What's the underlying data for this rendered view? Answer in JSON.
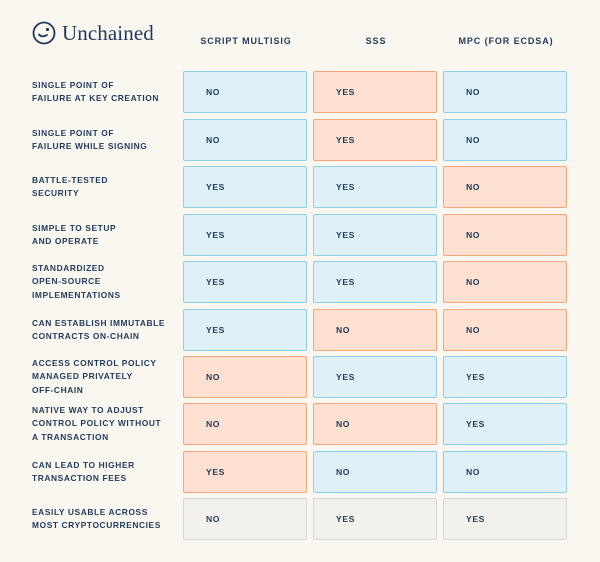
{
  "brand": {
    "name": "Unchained"
  },
  "columns": [
    "SCRIPT MULTISIG",
    "SSS",
    "MPC (FOR ECDSA)"
  ],
  "colors": {
    "blue": "#dff0f7",
    "orange": "#fde0cf",
    "grey": "#f3f1ec",
    "text": "#1f3a5c"
  },
  "rows": [
    {
      "label": "SINGLE POINT OF\nFAILURE AT KEY CREATION",
      "cells": [
        {
          "value": "NO",
          "tone": "blue"
        },
        {
          "value": "YES",
          "tone": "orange"
        },
        {
          "value": "NO",
          "tone": "blue"
        }
      ]
    },
    {
      "label": "SINGLE POINT OF\nFAILURE WHILE SIGNING",
      "cells": [
        {
          "value": "NO",
          "tone": "blue"
        },
        {
          "value": "YES",
          "tone": "orange"
        },
        {
          "value": "NO",
          "tone": "blue"
        }
      ]
    },
    {
      "label": "BATTLE-TESTED\nSECURITY",
      "cells": [
        {
          "value": "YES",
          "tone": "blue"
        },
        {
          "value": "YES",
          "tone": "blue"
        },
        {
          "value": "NO",
          "tone": "orange"
        }
      ]
    },
    {
      "label": "SIMPLE TO SETUP\nAND OPERATE",
      "cells": [
        {
          "value": "YES",
          "tone": "blue"
        },
        {
          "value": "YES",
          "tone": "blue"
        },
        {
          "value": "NO",
          "tone": "orange"
        }
      ]
    },
    {
      "label": "STANDARDIZED\nOPEN-SOURCE\nIMPLEMENTATIONS",
      "cells": [
        {
          "value": "YES",
          "tone": "blue"
        },
        {
          "value": "YES",
          "tone": "blue"
        },
        {
          "value": "NO",
          "tone": "orange"
        }
      ]
    },
    {
      "label": "CAN ESTABLISH IMMUTABLE\nCONTRACTS ON-CHAIN",
      "cells": [
        {
          "value": "YES",
          "tone": "blue"
        },
        {
          "value": "NO",
          "tone": "orange"
        },
        {
          "value": "NO",
          "tone": "orange"
        }
      ]
    },
    {
      "label": "ACCESS CONTROL POLICY\nMANAGED PRIVATELY\nOFF-CHAIN",
      "cells": [
        {
          "value": "NO",
          "tone": "orange"
        },
        {
          "value": "YES",
          "tone": "blue"
        },
        {
          "value": "YES",
          "tone": "blue"
        }
      ]
    },
    {
      "label": "NATIVE WAY TO ADJUST\nCONTROL POLICY WITHOUT\nA TRANSACTION",
      "cells": [
        {
          "value": "NO",
          "tone": "orange"
        },
        {
          "value": "NO",
          "tone": "orange"
        },
        {
          "value": "YES",
          "tone": "blue"
        }
      ]
    },
    {
      "label": "CAN LEAD TO HIGHER\nTRANSACTION FEES",
      "cells": [
        {
          "value": "YES",
          "tone": "orange"
        },
        {
          "value": "NO",
          "tone": "blue"
        },
        {
          "value": "NO",
          "tone": "blue"
        }
      ]
    },
    {
      "label": "EASILY USABLE ACROSS\nMOST CRYPTOCURRENCIES",
      "cells": [
        {
          "value": "NO",
          "tone": "grey"
        },
        {
          "value": "YES",
          "tone": "grey"
        },
        {
          "value": "YES",
          "tone": "grey"
        }
      ]
    }
  ]
}
